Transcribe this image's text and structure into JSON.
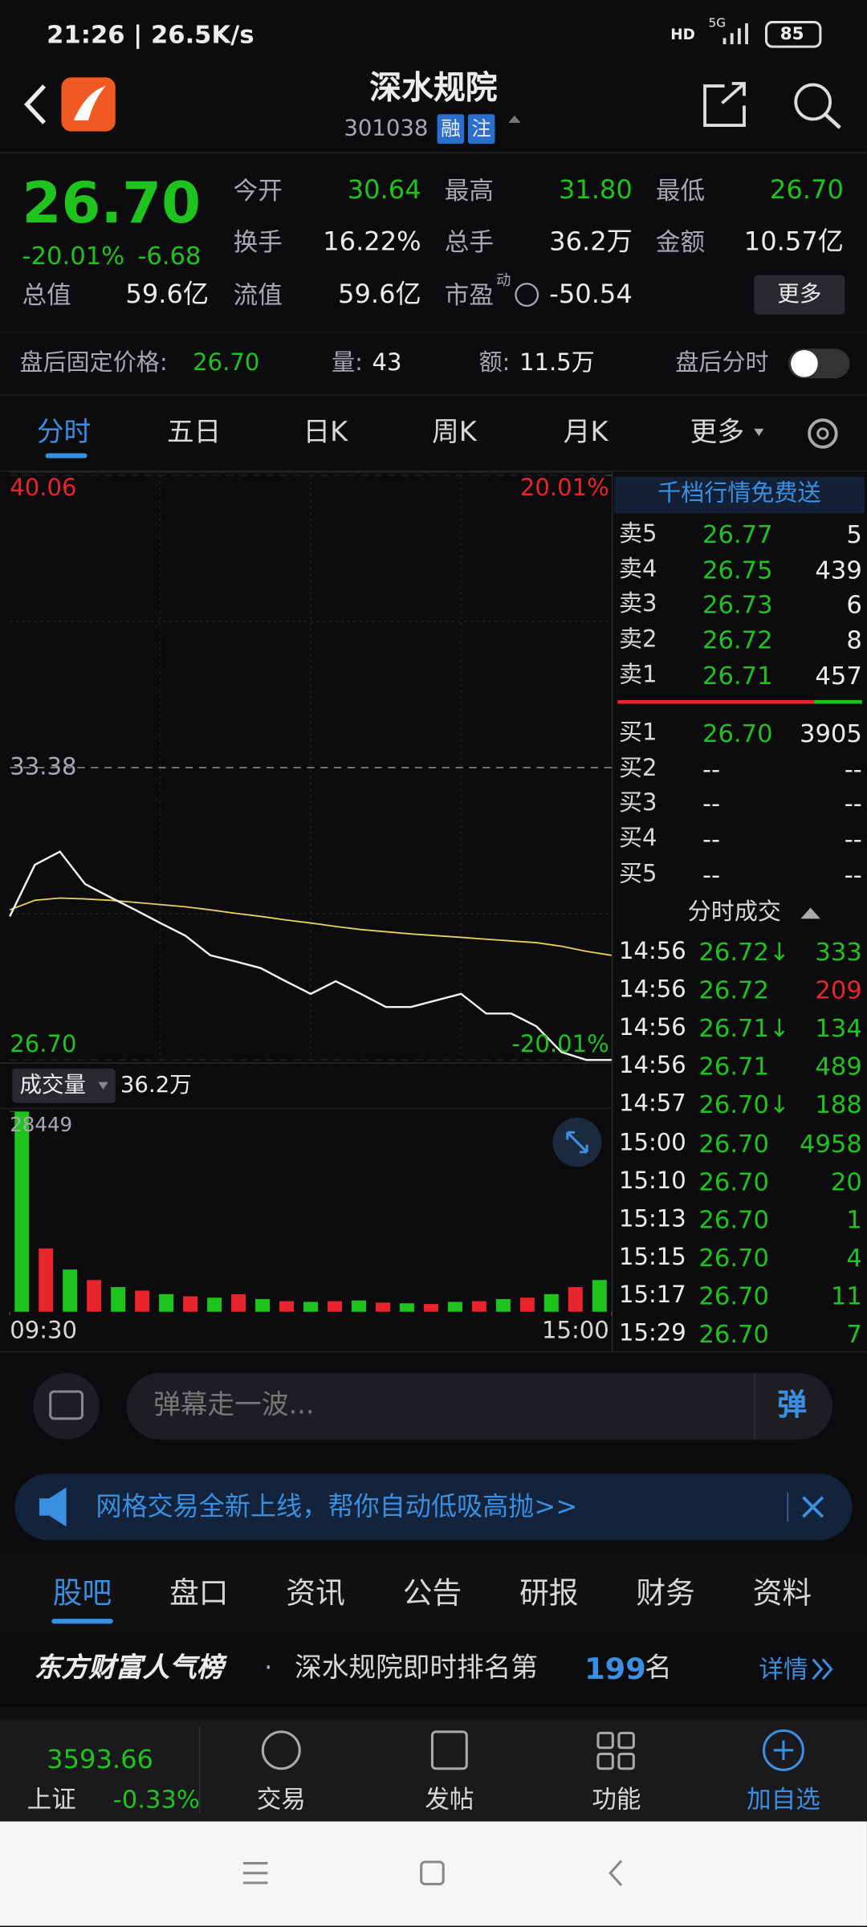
{
  "status_bar": {
    "time": "21:26 | 26.5K/s",
    "hd": "HD",
    "network": "5G",
    "battery": "85"
  },
  "header": {
    "title": "深水规院",
    "code": "301038",
    "tags": [
      "融",
      "注"
    ]
  },
  "quote": {
    "price": "26.70",
    "change_pct": "-20.01%",
    "change": "-6.68",
    "fields": [
      {
        "label": "今开",
        "value": "30.64"
      },
      {
        "label": "最高",
        "value": "31.80"
      },
      {
        "label": "最低",
        "value": "26.70"
      },
      {
        "label": "换手",
        "value": "16.22%"
      },
      {
        "label": "总手",
        "value": "36.2万"
      },
      {
        "label": "金额",
        "value": "10.57亿"
      },
      {
        "label": "总值",
        "value": "59.6亿"
      },
      {
        "label": "流值",
        "value": "59.6亿"
      },
      {
        "label": "市盈",
        "sup": "动",
        "value": "-50.54"
      }
    ],
    "more": "更多"
  },
  "after_hours": {
    "price_label": "盘后固定价格:",
    "price": "26.70",
    "volume_label": "量:",
    "volume": "43",
    "amount_label": "额:",
    "amount": "11.5万",
    "chart_label": "盘后分时"
  },
  "tabs": [
    "分时",
    "五日",
    "日K",
    "周K",
    "月K",
    "更多"
  ],
  "chart_data": [
    {
      "type": "line",
      "x": [
        0,
        10,
        20,
        30,
        40,
        50,
        60,
        70,
        80,
        90,
        100,
        110,
        120,
        130,
        140,
        150,
        160,
        170,
        180,
        190,
        200,
        210,
        220,
        230,
        240
      ],
      "xlim": [
        0,
        240
      ],
      "xticks": [
        {
          "value": 0,
          "label": "09:30"
        },
        {
          "value": 240,
          "label": "15:00"
        }
      ],
      "ylim": [
        26.7,
        40.06
      ],
      "yticks": [
        {
          "value": 26.7,
          "label": "26.70"
        },
        33.38,
        40.06
      ],
      "y2lim": [
        -20.01,
        20.01
      ],
      "y2ticks": [
        {
          "value": -20.01,
          "label": "-20.01%"
        },
        {
          "value": 20.01,
          "label": "20.01%"
        }
      ],
      "grid": true,
      "series": [
        {
          "color": "#f2f2f2",
          "values": [
            29.98,
            31.16,
            31.46,
            30.72,
            30.42,
            30.13,
            29.83,
            29.54,
            29.09,
            28.95,
            28.8,
            28.5,
            28.21,
            28.5,
            28.21,
            27.91,
            27.91,
            28.06,
            28.21,
            27.76,
            27.76,
            27.47,
            26.88,
            26.7,
            26.7
          ]
        },
        {
          "color": "#e6d35a",
          "values": [
            30.13,
            30.35,
            30.4,
            30.38,
            30.35,
            30.3,
            30.25,
            30.2,
            30.13,
            30.05,
            29.98,
            29.9,
            29.83,
            29.75,
            29.68,
            29.63,
            29.58,
            29.54,
            29.5,
            29.46,
            29.42,
            29.38,
            29.3,
            29.18,
            29.09
          ]
        }
      ]
    },
    {
      "type": "bar",
      "label": "成交量",
      "total": "36.2万",
      "ylim": [
        0,
        28449
      ],
      "yticks": [
        28449
      ],
      "values": [
        28449,
        9000,
        6000,
        4500,
        3500,
        3000,
        2500,
        2200,
        2000,
        2500,
        1800,
        1500,
        1400,
        1500,
        1600,
        1300,
        1200,
        1100,
        1400,
        1500,
        1800,
        2000,
        2500,
        3500,
        4500
      ],
      "colors": [
        "#1ec31e",
        "#e8242c",
        "#1ec31e",
        "#e8242c",
        "#1ec31e",
        "#e8242c",
        "#1ec31e",
        "#e8242c",
        "#1ec31e",
        "#e8242c",
        "#1ec31e",
        "#e8242c",
        "#1ec31e",
        "#e8242c",
        "#1ec31e",
        "#e8242c",
        "#1ec31e",
        "#e8242c",
        "#1ec31e",
        "#e8242c",
        "#1ec31e",
        "#e8242c",
        "#1ec31e",
        "#e8242c",
        "#1ec31e"
      ]
    }
  ],
  "order_book": {
    "banner": "千档行情免费送",
    "asks": [
      {
        "label": "卖5",
        "price": "26.77",
        "volume": "5"
      },
      {
        "label": "卖4",
        "price": "26.75",
        "volume": "439"
      },
      {
        "label": "卖3",
        "price": "26.73",
        "volume": "6"
      },
      {
        "label": "卖2",
        "price": "26.72",
        "volume": "8"
      },
      {
        "label": "卖1",
        "price": "26.71",
        "volume": "457"
      }
    ],
    "bids": [
      {
        "label": "买1",
        "price": "26.70",
        "volume": "3905"
      },
      {
        "label": "买2",
        "price": "--",
        "volume": "--"
      },
      {
        "label": "买3",
        "price": "--",
        "volume": "--"
      },
      {
        "label": "买4",
        "price": "--",
        "volume": "--"
      },
      {
        "label": "买5",
        "price": "--",
        "volume": "--"
      }
    ]
  },
  "trades": {
    "title": "分时成交",
    "rows": [
      {
        "time": "14:56",
        "price": "26.72↓",
        "volume": "333",
        "color": "#1ec31e"
      },
      {
        "time": "14:56",
        "price": "26.72",
        "volume": "209",
        "color": "#e8242c"
      },
      {
        "time": "14:56",
        "price": "26.71↓",
        "volume": "134",
        "color": "#1ec31e"
      },
      {
        "time": "14:56",
        "price": "26.71",
        "volume": "489",
        "color": "#1ec31e"
      },
      {
        "time": "14:57",
        "price": "26.70↓",
        "volume": "188",
        "color": "#1ec31e"
      },
      {
        "time": "15:00",
        "price": "26.70",
        "volume": "4958",
        "color": "#1ec31e"
      },
      {
        "time": "15:10",
        "price": "26.70",
        "volume": "20",
        "color": "#1ec31e"
      },
      {
        "time": "15:13",
        "price": "26.70",
        "volume": "1",
        "color": "#1ec31e"
      },
      {
        "time": "15:15",
        "price": "26.70",
        "volume": "4",
        "color": "#1ec31e"
      },
      {
        "time": "15:17",
        "price": "26.70",
        "volume": "11",
        "color": "#1ec31e"
      },
      {
        "time": "15:29",
        "price": "26.70",
        "volume": "7",
        "color": "#1ec31e"
      }
    ]
  },
  "comment": {
    "placeholder": "弹幕走一波...",
    "button": "弹"
  },
  "promo": {
    "text": "网格交易全新上线，帮你自动低吸高抛>>"
  },
  "section_tabs": [
    "股吧",
    "盘口",
    "资讯",
    "公告",
    "研报",
    "财务",
    "资料"
  ],
  "rank": {
    "title": "东方财富人气榜",
    "dot": "·",
    "text": "深水规院即时排名第",
    "number": "199",
    "unit": "名",
    "detail": "详情"
  },
  "footer": {
    "index_value": "3593.66",
    "index_name": "上证",
    "index_change": "-0.33%",
    "nav": [
      "交易",
      "发帖",
      "功能",
      "加自选"
    ]
  }
}
